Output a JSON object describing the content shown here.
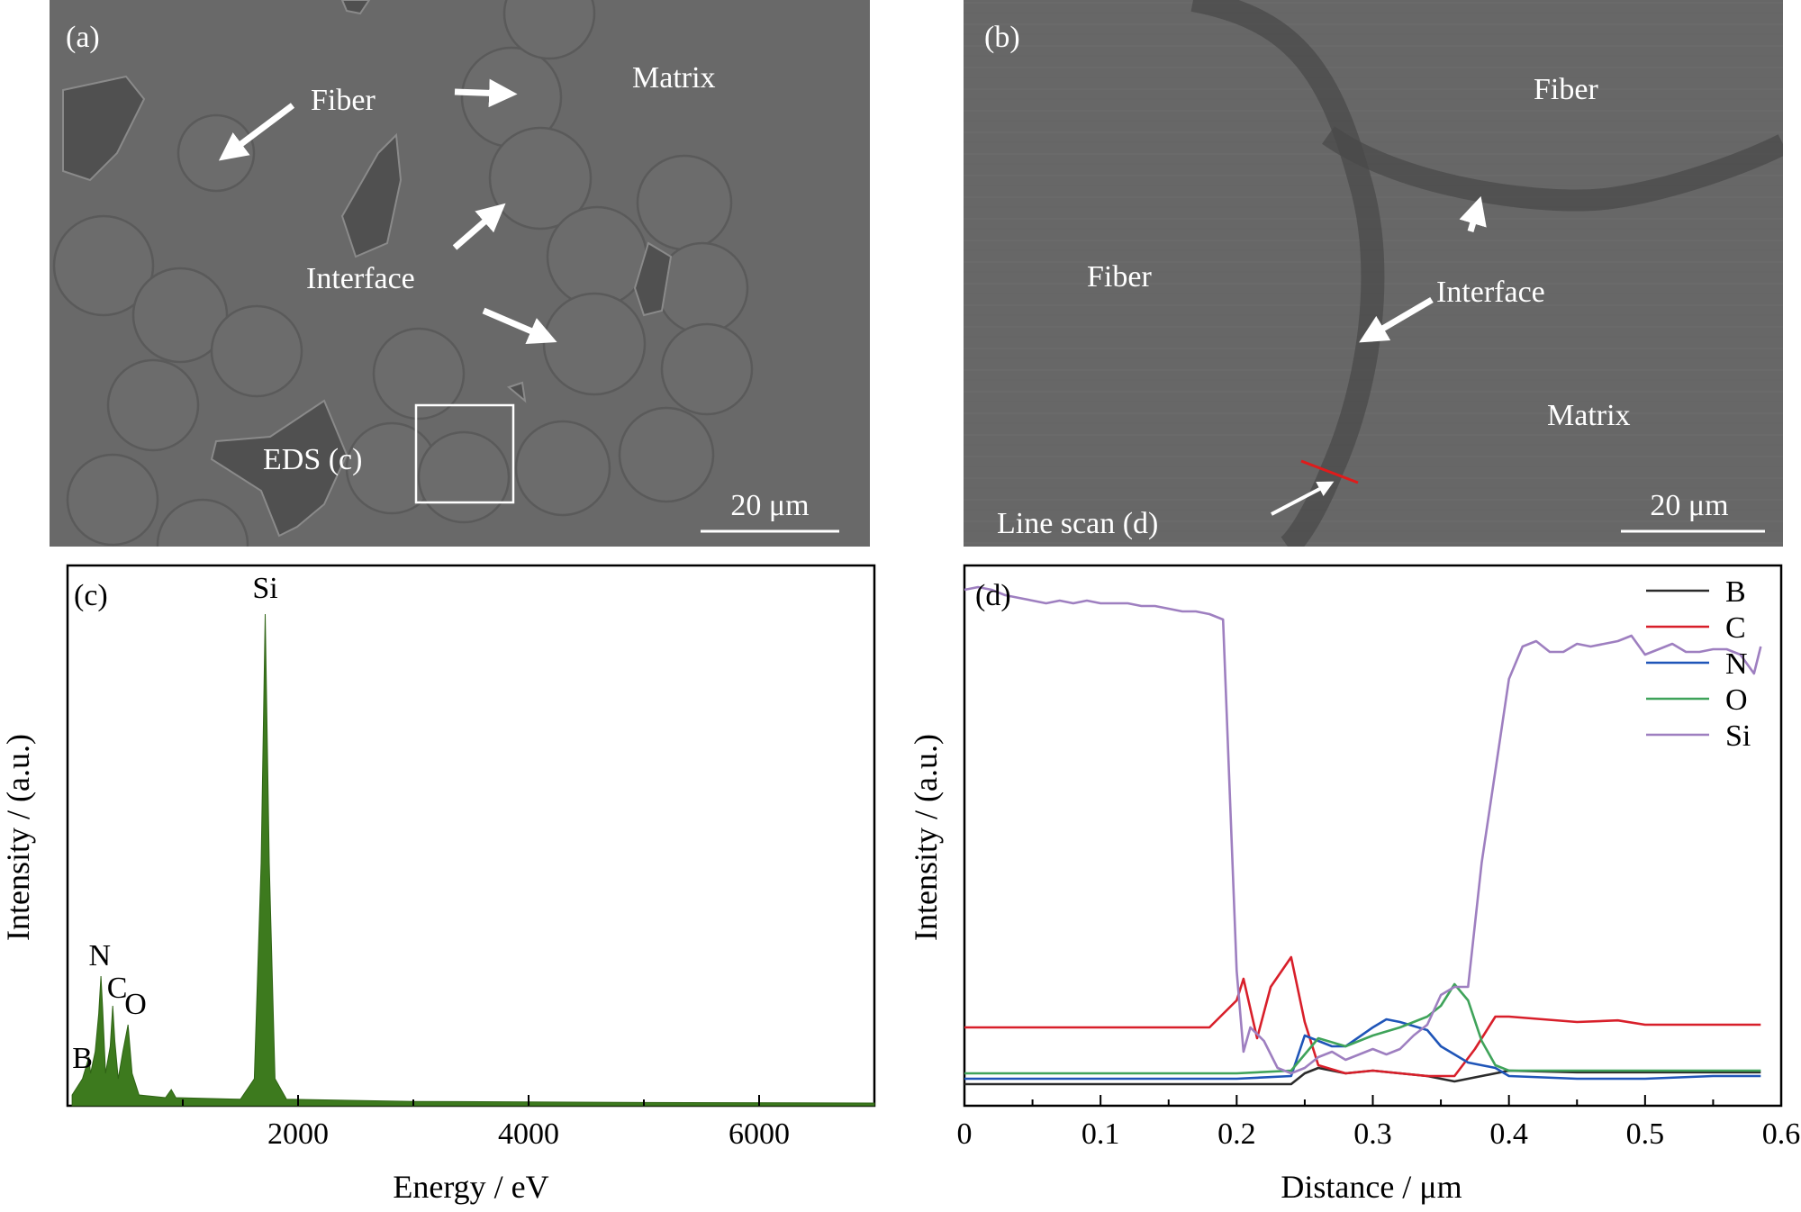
{
  "panels": {
    "a": {
      "tag": "(a)",
      "labels": {
        "fiber": "Fiber",
        "matrix": "Matrix",
        "interface": "Interface",
        "eds": "EDS (c)"
      },
      "scale_bar": "20 μm"
    },
    "b": {
      "tag": "(b)",
      "labels": {
        "fiber_top": "Fiber",
        "fiber_left": "Fiber",
        "interface": "Interface",
        "matrix": "Matrix",
        "line_scan": "Line scan (d)"
      },
      "scale_bar": "20 μm"
    },
    "c": {
      "tag": "(c)",
      "peak_labels": {
        "Si": "Si",
        "N": "N",
        "C": "C",
        "O": "O",
        "B": "B"
      }
    },
    "d": {
      "tag": "(d)"
    }
  },
  "colors": {
    "sem_background": "#686868",
    "eds_fill": "#3d7a1e",
    "B": "#2b2b2b",
    "C": "#d81f2a",
    "N": "#1f55b8",
    "O": "#3fa35a",
    "Si": "#9e7fc0",
    "line_scan_marker": "#e01b1b"
  },
  "chart_data": [
    {
      "id": "c",
      "type": "area",
      "xlabel": "Energy / eV",
      "ylabel": "Intensity / (a.u.)",
      "xlim": [
        0,
        7000
      ],
      "ylim": [
        0,
        1
      ],
      "xticks": [
        2000,
        4000,
        6000
      ],
      "xtick_labels": [
        "2000",
        "4000",
        "6000"
      ],
      "minor_xticks": [
        1000,
        3000,
        5000
      ],
      "series": [
        {
          "values": [
            {
              "x": 40,
              "y": 0.02
            },
            {
              "x": 130,
              "y": 0.05
            },
            {
              "x": 185,
              "y": 0.09
            },
            {
              "x": 200,
              "y": 0.06
            },
            {
              "x": 240,
              "y": 0.1
            },
            {
              "x": 270,
              "y": 0.17
            },
            {
              "x": 290,
              "y": 0.24
            },
            {
              "x": 305,
              "y": 0.18
            },
            {
              "x": 330,
              "y": 0.06
            },
            {
              "x": 370,
              "y": 0.11
            },
            {
              "x": 392,
              "y": 0.185
            },
            {
              "x": 410,
              "y": 0.12
            },
            {
              "x": 440,
              "y": 0.05
            },
            {
              "x": 480,
              "y": 0.1
            },
            {
              "x": 525,
              "y": 0.15
            },
            {
              "x": 560,
              "y": 0.06
            },
            {
              "x": 620,
              "y": 0.02
            },
            {
              "x": 850,
              "y": 0.015
            },
            {
              "x": 900,
              "y": 0.03
            },
            {
              "x": 940,
              "y": 0.015
            },
            {
              "x": 1500,
              "y": 0.012
            },
            {
              "x": 1620,
              "y": 0.05
            },
            {
              "x": 1680,
              "y": 0.45
            },
            {
              "x": 1715,
              "y": 0.91
            },
            {
              "x": 1750,
              "y": 0.45
            },
            {
              "x": 1800,
              "y": 0.05
            },
            {
              "x": 1900,
              "y": 0.012
            },
            {
              "x": 3000,
              "y": 0.008
            },
            {
              "x": 5000,
              "y": 0.006
            },
            {
              "x": 7000,
              "y": 0.005
            }
          ]
        }
      ],
      "annotations": [
        {
          "text": "Si",
          "x": 1715,
          "y": 0.94
        },
        {
          "text": "N",
          "x": 280,
          "y": 0.26
        },
        {
          "text": "C",
          "x": 430,
          "y": 0.2
        },
        {
          "text": "O",
          "x": 590,
          "y": 0.17
        },
        {
          "text": "B",
          "x": 130,
          "y": 0.07
        }
      ]
    },
    {
      "id": "d",
      "type": "line",
      "xlabel": "Distance / μm",
      "ylabel": "Intensity / (a.u.)",
      "xlim": [
        0,
        0.6
      ],
      "ylim": [
        0,
        1
      ],
      "xticks": [
        0,
        0.1,
        0.2,
        0.3,
        0.4,
        0.5,
        0.6
      ],
      "xtick_labels": [
        "0",
        "0.1",
        "0.2",
        "0.3",
        "0.4",
        "0.5",
        "0.6"
      ],
      "minor_xticks": [
        0.05,
        0.15,
        0.25,
        0.35,
        0.45,
        0.55
      ],
      "legend": "top-right",
      "series": [
        {
          "name": "B",
          "color": "#2b2b2b",
          "x": [
            0,
            0.05,
            0.1,
            0.15,
            0.2,
            0.24,
            0.25,
            0.26,
            0.28,
            0.3,
            0.32,
            0.34,
            0.36,
            0.38,
            0.4,
            0.45,
            0.5,
            0.55,
            0.585
          ],
          "y": [
            0.04,
            0.04,
            0.04,
            0.04,
            0.04,
            0.04,
            0.06,
            0.07,
            0.06,
            0.065,
            0.06,
            0.055,
            0.045,
            0.055,
            0.065,
            0.062,
            0.062,
            0.062,
            0.062
          ]
        },
        {
          "name": "C",
          "color": "#d81f2a",
          "x": [
            0,
            0.05,
            0.1,
            0.15,
            0.18,
            0.2,
            0.205,
            0.215,
            0.225,
            0.24,
            0.25,
            0.26,
            0.28,
            0.3,
            0.32,
            0.34,
            0.36,
            0.375,
            0.39,
            0.4,
            0.45,
            0.48,
            0.5,
            0.55,
            0.585
          ],
          "y": [
            0.145,
            0.145,
            0.145,
            0.145,
            0.145,
            0.195,
            0.235,
            0.125,
            0.22,
            0.275,
            0.155,
            0.075,
            0.06,
            0.065,
            0.06,
            0.055,
            0.055,
            0.105,
            0.165,
            0.165,
            0.155,
            0.158,
            0.15,
            0.15,
            0.15
          ]
        },
        {
          "name": "N",
          "color": "#1f55b8",
          "x": [
            0,
            0.05,
            0.1,
            0.15,
            0.2,
            0.24,
            0.25,
            0.26,
            0.27,
            0.28,
            0.3,
            0.31,
            0.32,
            0.34,
            0.35,
            0.36,
            0.37,
            0.39,
            0.4,
            0.45,
            0.5,
            0.55,
            0.585
          ],
          "y": [
            0.05,
            0.05,
            0.05,
            0.05,
            0.05,
            0.055,
            0.13,
            0.12,
            0.11,
            0.11,
            0.145,
            0.16,
            0.155,
            0.14,
            0.11,
            0.095,
            0.08,
            0.07,
            0.055,
            0.05,
            0.05,
            0.055,
            0.055
          ]
        },
        {
          "name": "O",
          "color": "#3fa35a",
          "x": [
            0,
            0.05,
            0.1,
            0.15,
            0.2,
            0.24,
            0.26,
            0.28,
            0.3,
            0.32,
            0.34,
            0.35,
            0.36,
            0.37,
            0.38,
            0.39,
            0.4,
            0.45,
            0.5,
            0.55,
            0.585
          ],
          "y": [
            0.06,
            0.06,
            0.06,
            0.06,
            0.06,
            0.065,
            0.125,
            0.11,
            0.13,
            0.145,
            0.165,
            0.185,
            0.225,
            0.195,
            0.12,
            0.075,
            0.065,
            0.065,
            0.065,
            0.065,
            0.065
          ]
        },
        {
          "name": "Si",
          "color": "#9e7fc0",
          "x": [
            0,
            0.01,
            0.02,
            0.03,
            0.04,
            0.05,
            0.06,
            0.07,
            0.08,
            0.09,
            0.1,
            0.11,
            0.12,
            0.13,
            0.14,
            0.15,
            0.16,
            0.17,
            0.18,
            0.19,
            0.2,
            0.205,
            0.21,
            0.22,
            0.23,
            0.24,
            0.25,
            0.26,
            0.27,
            0.28,
            0.29,
            0.3,
            0.31,
            0.32,
            0.33,
            0.34,
            0.35,
            0.36,
            0.37,
            0.38,
            0.39,
            0.4,
            0.41,
            0.42,
            0.43,
            0.44,
            0.45,
            0.46,
            0.47,
            0.48,
            0.49,
            0.5,
            0.51,
            0.52,
            0.53,
            0.54,
            0.55,
            0.56,
            0.57,
            0.58,
            0.585
          ],
          "y": [
            0.955,
            0.96,
            0.955,
            0.945,
            0.94,
            0.935,
            0.93,
            0.935,
            0.93,
            0.935,
            0.93,
            0.93,
            0.93,
            0.925,
            0.925,
            0.92,
            0.915,
            0.915,
            0.91,
            0.9,
            0.25,
            0.1,
            0.145,
            0.12,
            0.07,
            0.06,
            0.07,
            0.09,
            0.1,
            0.085,
            0.095,
            0.105,
            0.095,
            0.105,
            0.13,
            0.15,
            0.205,
            0.22,
            0.22,
            0.45,
            0.62,
            0.79,
            0.85,
            0.86,
            0.84,
            0.84,
            0.855,
            0.85,
            0.855,
            0.86,
            0.87,
            0.835,
            0.845,
            0.855,
            0.84,
            0.84,
            0.845,
            0.845,
            0.835,
            0.8,
            0.85
          ]
        }
      ]
    }
  ]
}
